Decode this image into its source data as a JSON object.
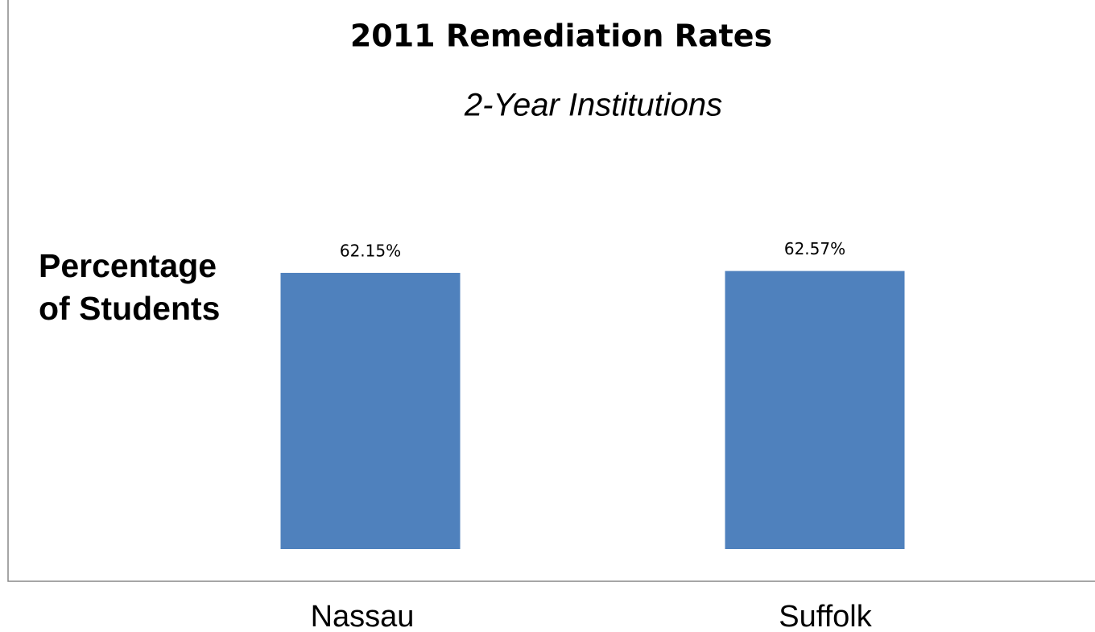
{
  "chart_data": {
    "type": "bar",
    "title": "2011 Remediation Rates",
    "subtitle": "2-Year Institutions",
    "y_label": "Percentage of Students",
    "categories": [
      "Nassau",
      "Suffolk"
    ],
    "values": [
      62.15,
      62.57
    ],
    "value_labels": [
      "62.15%",
      "62.57%"
    ],
    "color": "#4f81bd",
    "ylim": [
      0,
      100
    ]
  }
}
